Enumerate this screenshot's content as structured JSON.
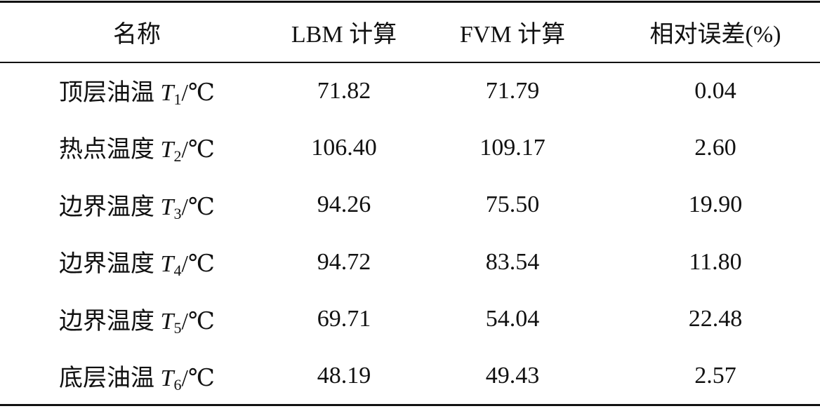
{
  "table": {
    "header": [
      "名称",
      "LBM 计算",
      "FVM 计算",
      "相对误差(%)"
    ],
    "rows": [
      {
        "name": "顶层油温",
        "symbol": "T",
        "sub": "1",
        "unit": "/℃",
        "lbm": "71.82",
        "fvm": "71.79",
        "error": "0.04"
      },
      {
        "name": "热点温度",
        "symbol": "T",
        "sub": "2",
        "unit": "/℃",
        "lbm": "106.40",
        "fvm": "109.17",
        "error": "2.60"
      },
      {
        "name": "边界温度",
        "symbol": "T",
        "sub": "3",
        "unit": "/℃",
        "lbm": "94.26",
        "fvm": "75.50",
        "error": "19.90"
      },
      {
        "name": "边界温度",
        "symbol": "T",
        "sub": "4",
        "unit": "/℃",
        "lbm": "94.72",
        "fvm": "83.54",
        "error": "11.80"
      },
      {
        "name": "边界温度",
        "symbol": "T",
        "sub": "5",
        "unit": "/℃",
        "lbm": "69.71",
        "fvm": "54.04",
        "error": "22.48"
      },
      {
        "name": "底层油温",
        "symbol": "T",
        "sub": "6",
        "unit": "/℃",
        "lbm": "48.19",
        "fvm": "49.43",
        "error": "2.57"
      }
    ]
  }
}
